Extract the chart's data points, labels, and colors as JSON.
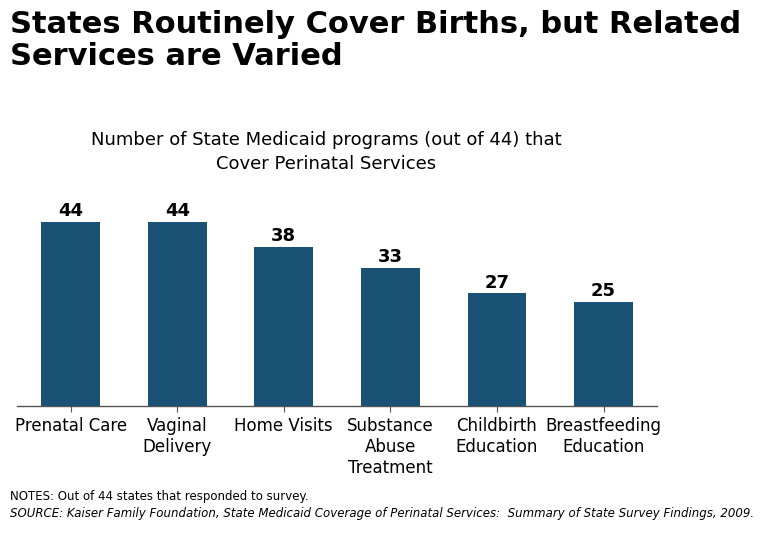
{
  "title": "States Routinely Cover Births, but Related\nServices are Varied",
  "subtitle": "Number of State Medicaid programs (out of 44) that\nCover Perinatal Services",
  "categories": [
    "Prenatal Care",
    "Vaginal\nDelivery",
    "Home Visits",
    "Substance\nAbuse\nTreatment",
    "Childbirth\nEducation",
    "Breastfeeding\nEducation"
  ],
  "values": [
    44,
    44,
    38,
    33,
    27,
    25
  ],
  "bar_color": "#1a5276",
  "ylim": [
    0,
    50
  ],
  "background_color": "#ffffff",
  "notes_line1": "NOTES: Out of 44 states that responded to survey.",
  "notes_line2": "SOURCE: Kaiser Family Foundation, State Medicaid Coverage of Perinatal Services:  Summary of State Survey Findings, 2009.",
  "title_fontsize": 22,
  "subtitle_fontsize": 13,
  "label_fontsize": 12,
  "value_fontsize": 13,
  "notes_fontsize": 8.5
}
